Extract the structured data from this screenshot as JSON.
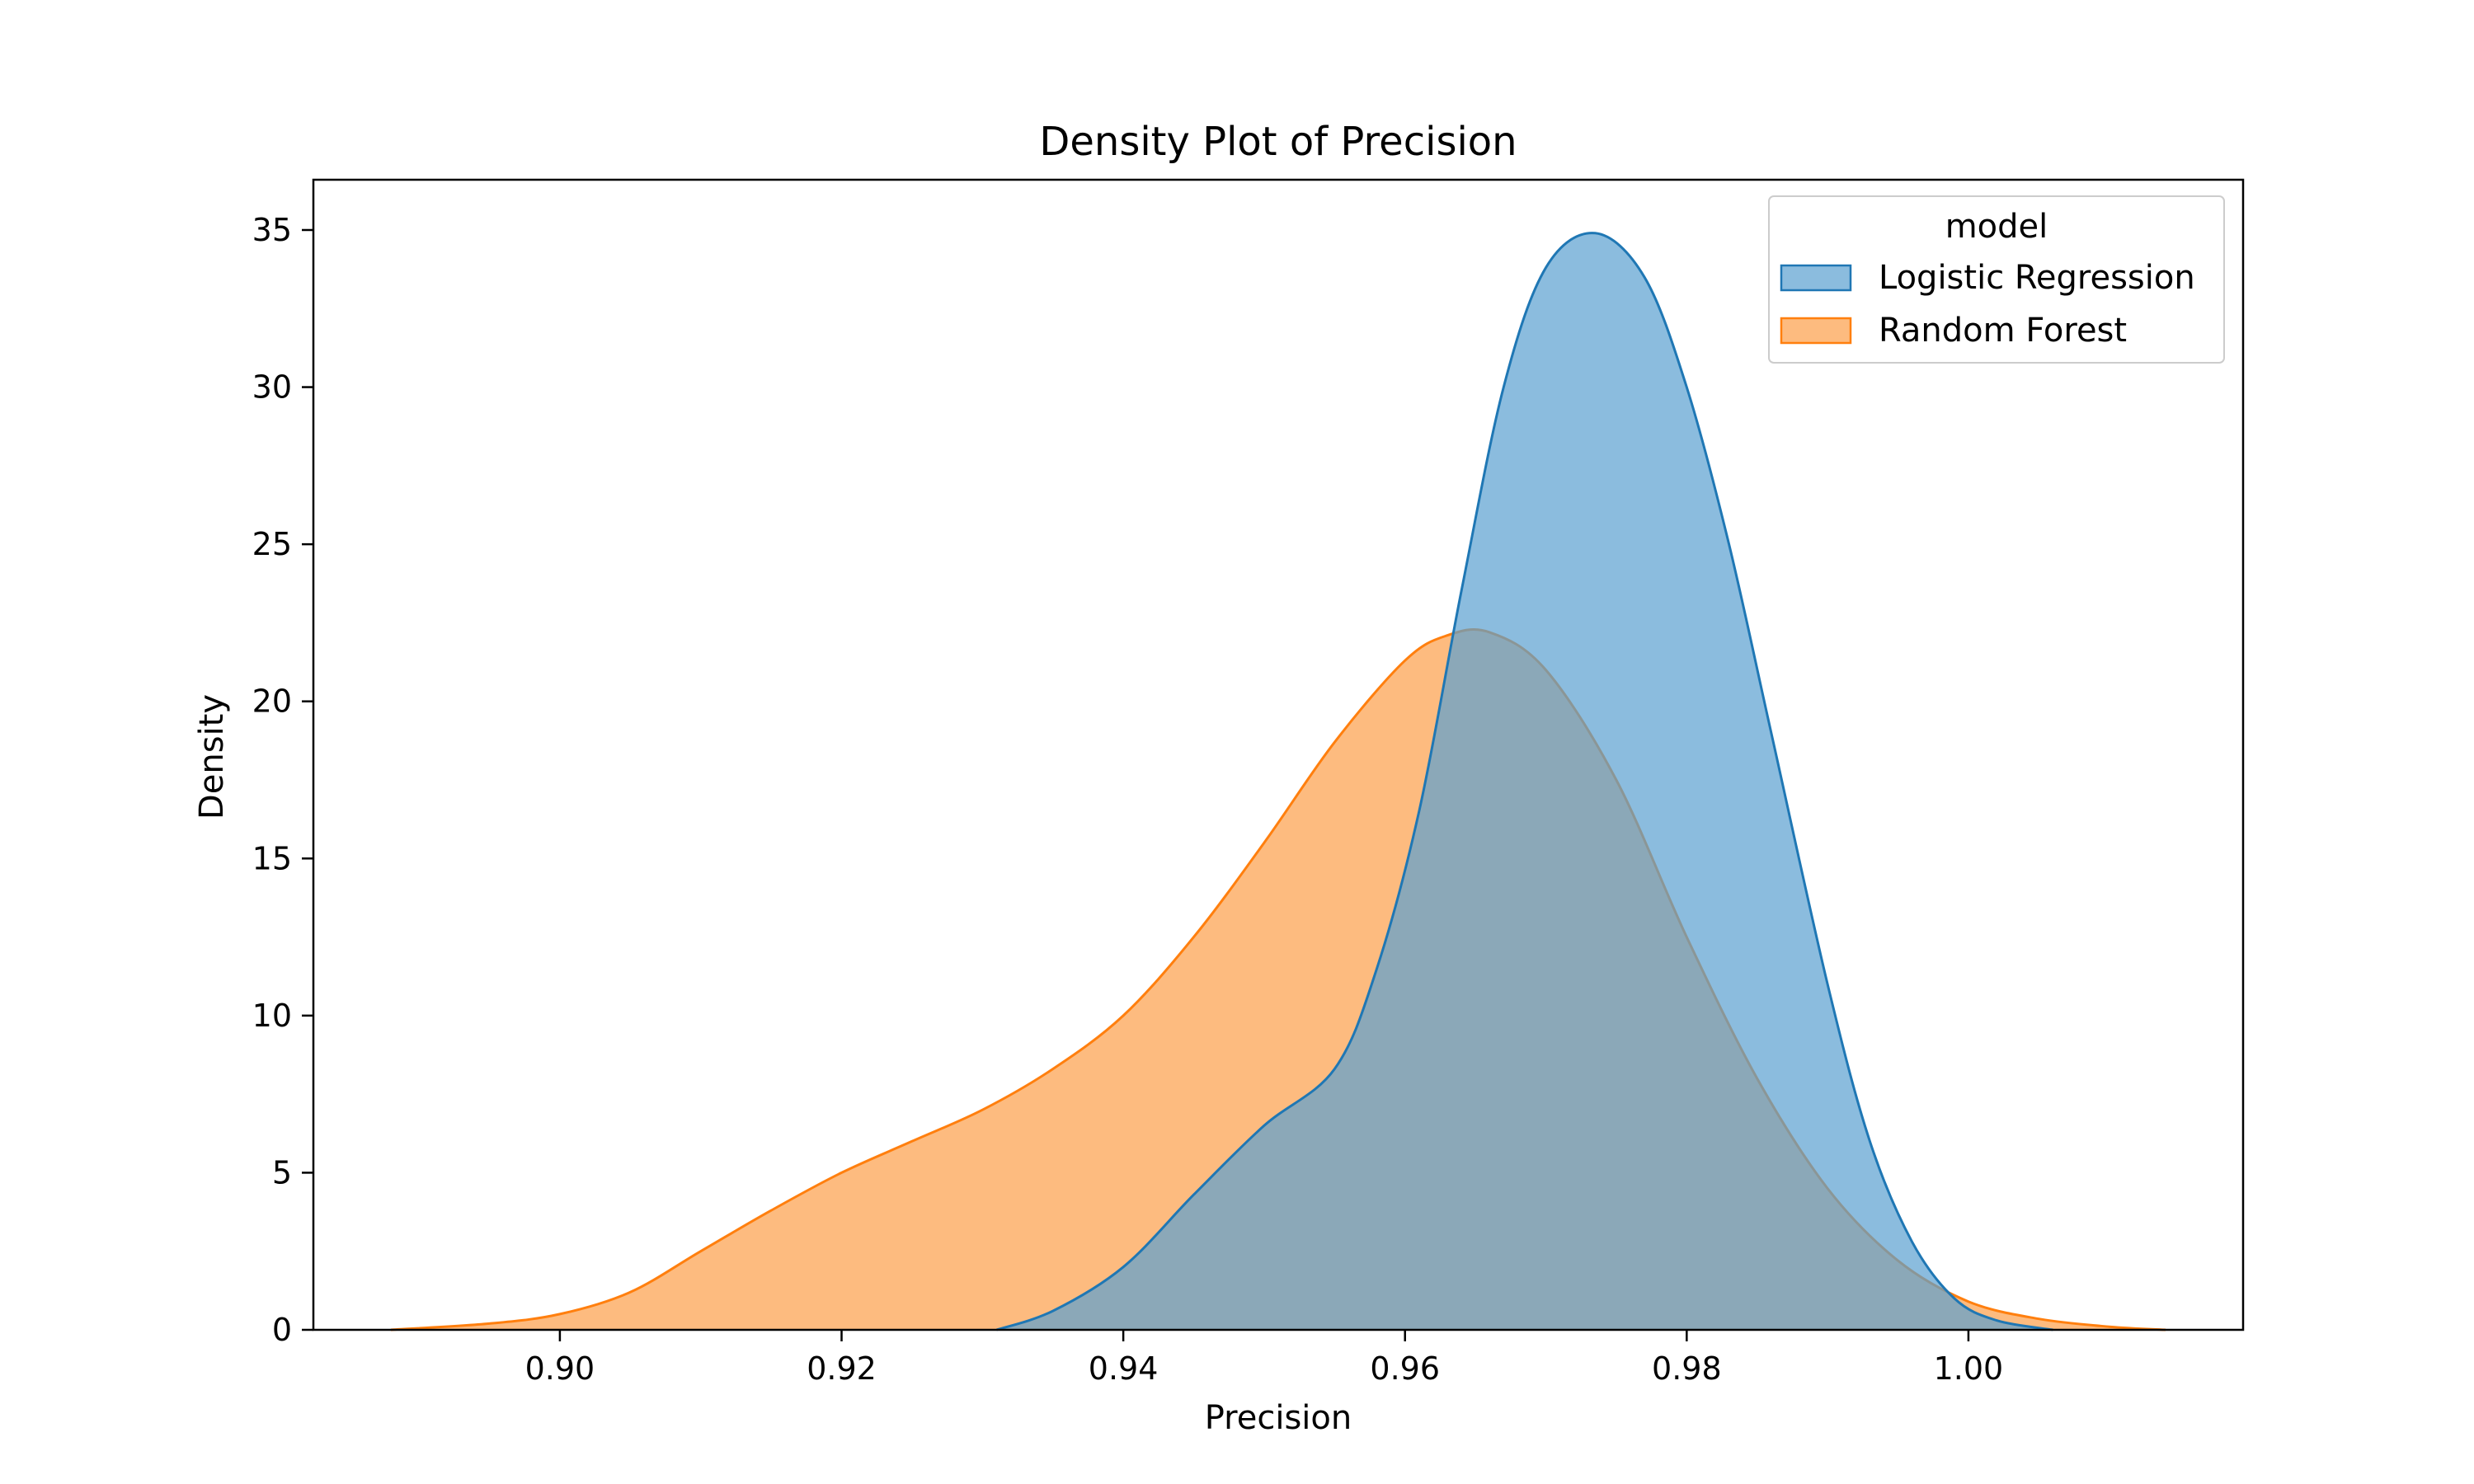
{
  "chart_data": {
    "type": "area",
    "title": "Density Plot of Precision",
    "xlabel": "Precision",
    "ylabel": "Density",
    "xlim": [
      0.8825,
      1.0195
    ],
    "ylim": [
      0,
      36.6
    ],
    "xticks": [
      0.9,
      0.92,
      0.94,
      0.96,
      0.98,
      1.0
    ],
    "xtick_labels": [
      "0.90",
      "0.92",
      "0.94",
      "0.96",
      "0.98",
      "1.00"
    ],
    "yticks": [
      0,
      5,
      10,
      15,
      20,
      25,
      30,
      35
    ],
    "ytick_labels": [
      "0",
      "5",
      "10",
      "15",
      "20",
      "25",
      "30",
      "35"
    ],
    "grid": false,
    "legend": {
      "title": "model",
      "placement": "top-right"
    },
    "series": [
      {
        "name": "Random Forest",
        "color": "#ff7f0e",
        "fill": "#fdbb7f",
        "x": [
          0.888,
          0.895,
          0.9,
          0.905,
          0.91,
          0.915,
          0.92,
          0.925,
          0.93,
          0.935,
          0.94,
          0.945,
          0.95,
          0.955,
          0.96,
          0.963,
          0.966,
          0.97,
          0.975,
          0.98,
          0.985,
          0.99,
          0.995,
          1.0,
          1.005,
          1.01,
          1.014
        ],
        "y": [
          0.0,
          0.2,
          0.5,
          1.2,
          2.5,
          3.8,
          5.0,
          6.0,
          7.0,
          8.3,
          10.0,
          12.5,
          15.5,
          18.7,
          21.3,
          22.1,
          22.2,
          21.0,
          17.5,
          12.5,
          8.0,
          4.5,
          2.2,
          0.9,
          0.35,
          0.1,
          0.0
        ]
      },
      {
        "name": "Logistic Regression",
        "color": "#1f77b4",
        "fill": "#5aa0d0",
        "x": [
          0.931,
          0.935,
          0.94,
          0.945,
          0.95,
          0.955,
          0.958,
          0.961,
          0.964,
          0.967,
          0.97,
          0.9735,
          0.977,
          0.98,
          0.983,
          0.986,
          0.99,
          0.993,
          0.996,
          0.999,
          1.002,
          1.006
        ],
        "y": [
          0.0,
          0.6,
          2.0,
          4.3,
          6.5,
          8.3,
          11.5,
          16.5,
          23.5,
          30.0,
          33.8,
          34.9,
          33.5,
          30.0,
          25.0,
          19.0,
          11.0,
          6.0,
          2.8,
          1.0,
          0.3,
          0.0
        ]
      }
    ]
  }
}
